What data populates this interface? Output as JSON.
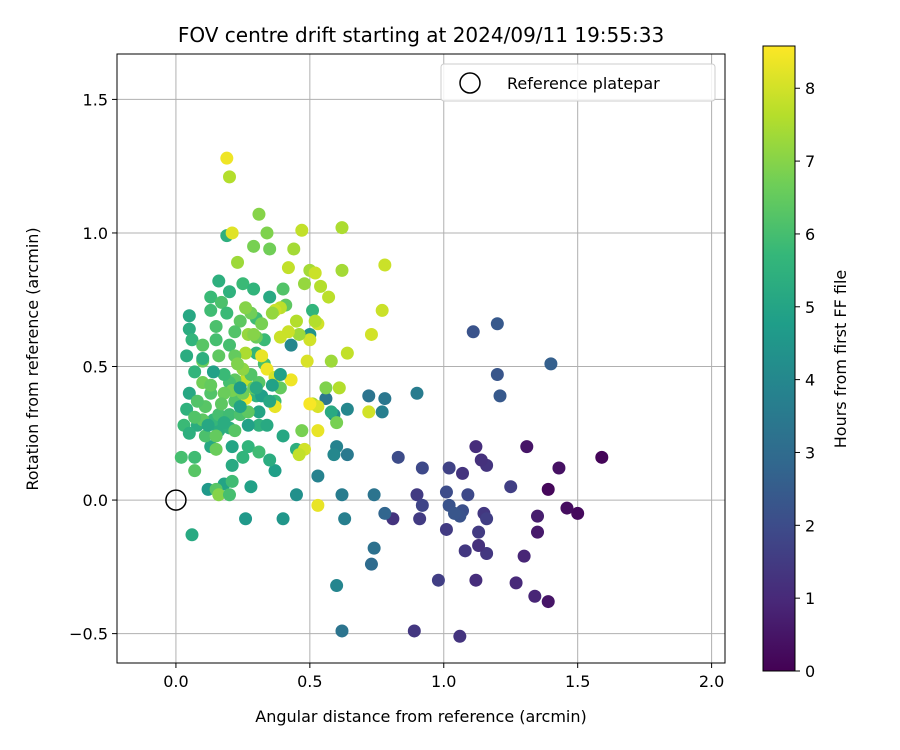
{
  "chart_data": {
    "type": "scatter",
    "title": "FOV centre drift starting at 2024/09/11 19:55:33",
    "xlabel": "Angular distance from reference (arcmin)",
    "ylabel": "Rotation from reference (arcmin)",
    "xlim": [
      -0.22,
      2.05
    ],
    "ylim": [
      -0.61,
      1.67
    ],
    "xticks": [
      0.0,
      0.5,
      1.0,
      1.5,
      2.0
    ],
    "xtick_labels": [
      "0.0",
      "0.5",
      "1.0",
      "1.5",
      "2.0"
    ],
    "yticks": [
      -0.5,
      0.0,
      0.5,
      1.0,
      1.5
    ],
    "ytick_labels": [
      "−0.5",
      "0.0",
      "0.5",
      "1.0",
      "1.5"
    ],
    "grid": true,
    "legend": {
      "placement": "top-right",
      "entries": [
        "Reference platepar"
      ]
    },
    "reference_point": {
      "x": 0.0,
      "y": 0.0,
      "label": "Reference platepar"
    },
    "colorbar": {
      "label": "Hours from first FF file",
      "range": [
        0,
        8.58
      ],
      "ticks": [
        0,
        1,
        2,
        3,
        4,
        5,
        6,
        7,
        8
      ],
      "tick_labels": [
        "0",
        "1",
        "2",
        "3",
        "4",
        "5",
        "6",
        "7",
        "8"
      ],
      "colormap": "viridis"
    },
    "points": [
      [
        1.59,
        0.16,
        0.1
      ],
      [
        1.5,
        -0.05,
        0.2
      ],
      [
        1.46,
        -0.03,
        0.3
      ],
      [
        1.43,
        0.12,
        0.4
      ],
      [
        1.39,
        0.04,
        0.15
      ],
      [
        1.39,
        -0.38,
        0.5
      ],
      [
        1.35,
        -0.06,
        0.7
      ],
      [
        1.35,
        -0.12,
        0.6
      ],
      [
        1.34,
        -0.36,
        0.9
      ],
      [
        1.31,
        0.2,
        0.5
      ],
      [
        1.3,
        -0.21,
        0.9
      ],
      [
        1.27,
        -0.31,
        1.0
      ],
      [
        1.25,
        0.05,
        1.6
      ],
      [
        1.2,
        0.66,
        2.4
      ],
      [
        1.2,
        0.47,
        2.3
      ],
      [
        1.21,
        0.39,
        2.4
      ],
      [
        1.11,
        0.63,
        2.2
      ],
      [
        1.4,
        0.51,
        2.6
      ],
      [
        1.16,
        0.13,
        1.3
      ],
      [
        1.14,
        0.15,
        1.2
      ],
      [
        1.12,
        0.2,
        1.1
      ],
      [
        1.15,
        -0.05,
        1.4
      ],
      [
        1.13,
        -0.12,
        1.5
      ],
      [
        1.16,
        -0.2,
        1.4
      ],
      [
        1.13,
        -0.17,
        1.2
      ],
      [
        1.12,
        -0.3,
        1.1
      ],
      [
        1.16,
        -0.07,
        1.6
      ],
      [
        1.09,
        0.02,
        1.9
      ],
      [
        1.07,
        0.1,
        1.3
      ],
      [
        1.07,
        -0.04,
        2.1
      ],
      [
        1.06,
        -0.06,
        2.2
      ],
      [
        1.08,
        -0.19,
        1.4
      ],
      [
        1.06,
        -0.51,
        1.3
      ],
      [
        1.02,
        0.12,
        1.7
      ],
      [
        1.01,
        0.03,
        2.0
      ],
      [
        1.02,
        -0.02,
        2.2
      ],
      [
        1.01,
        -0.11,
        1.5
      ],
      [
        1.04,
        -0.05,
        2.3
      ],
      [
        0.98,
        -0.3,
        1.6
      ],
      [
        0.92,
        0.12,
        1.9
      ],
      [
        0.9,
        0.02,
        1.5
      ],
      [
        0.91,
        -0.07,
        1.5
      ],
      [
        0.92,
        -0.02,
        1.8
      ],
      [
        0.89,
        -0.49,
        1.4
      ],
      [
        0.83,
        0.16,
        2.0
      ],
      [
        0.81,
        -0.07,
        1.3
      ],
      [
        0.78,
        -0.05,
        2.8
      ],
      [
        0.74,
        0.02,
        3.3
      ],
      [
        0.73,
        -0.24,
        3.0
      ],
      [
        0.74,
        -0.18,
        3.2
      ],
      [
        0.9,
        0.4,
        3.6
      ],
      [
        0.72,
        0.39,
        3.3
      ],
      [
        0.78,
        0.38,
        3.4
      ],
      [
        0.77,
        0.33,
        3.7
      ],
      [
        0.64,
        0.17,
        3.5
      ],
      [
        0.6,
        0.2,
        3.8
      ],
      [
        0.59,
        0.17,
        4.0
      ],
      [
        0.62,
        0.02,
        3.6
      ],
      [
        0.63,
        -0.07,
        3.7
      ],
      [
        0.6,
        -0.32,
        3.9
      ],
      [
        0.62,
        -0.49,
        3.3
      ],
      [
        0.53,
        0.09,
        3.8
      ],
      [
        0.45,
        0.02,
        4.3
      ],
      [
        0.4,
        -0.07,
        4.5
      ],
      [
        0.26,
        -0.07,
        4.6
      ],
      [
        0.06,
        -0.13,
        5.2
      ],
      [
        0.12,
        0.04,
        4.6
      ],
      [
        0.18,
        0.06,
        5.0
      ],
      [
        0.28,
        0.05,
        4.9
      ],
      [
        0.4,
        0.24,
        5.1
      ],
      [
        0.37,
        0.11,
        4.8
      ],
      [
        0.35,
        0.15,
        5.3
      ],
      [
        0.45,
        0.19,
        5.4
      ],
      [
        0.59,
        0.32,
        4.1
      ],
      [
        0.56,
        0.38,
        3.4
      ],
      [
        0.64,
        0.34,
        4.0
      ],
      [
        0.58,
        0.33,
        5.2
      ],
      [
        0.43,
        0.58,
        4.0
      ],
      [
        0.5,
        0.62,
        4.4
      ],
      [
        0.51,
        0.71,
        5.6
      ],
      [
        0.35,
        0.76,
        5.2
      ],
      [
        0.25,
        0.81,
        5.8
      ],
      [
        0.2,
        0.78,
        5.5
      ],
      [
        0.19,
        0.99,
        5.4
      ],
      [
        0.29,
        0.79,
        5.6
      ],
      [
        0.16,
        0.82,
        5.4
      ],
      [
        0.13,
        0.76,
        5.8
      ],
      [
        0.05,
        0.69,
        5.1
      ],
      [
        0.05,
        0.64,
        5.3
      ],
      [
        0.06,
        0.6,
        5.6
      ],
      [
        0.04,
        0.54,
        5.3
      ],
      [
        0.07,
        0.48,
        5.6
      ],
      [
        0.05,
        0.4,
        5.1
      ],
      [
        0.04,
        0.34,
        5.5
      ],
      [
        0.08,
        0.28,
        5.3
      ],
      [
        0.03,
        0.28,
        5.8
      ],
      [
        0.05,
        0.25,
        5.4
      ],
      [
        0.02,
        0.16,
        6.0
      ],
      [
        0.07,
        0.11,
        6.3
      ],
      [
        0.07,
        0.16,
        5.9
      ],
      [
        0.13,
        0.2,
        5.1
      ],
      [
        0.16,
        0.26,
        5.3
      ],
      [
        0.14,
        0.3,
        5.7
      ],
      [
        0.2,
        0.27,
        5.4
      ],
      [
        0.25,
        0.16,
        5.6
      ],
      [
        0.21,
        0.13,
        5.2
      ],
      [
        0.27,
        0.2,
        5.6
      ],
      [
        0.31,
        0.18,
        5.9
      ],
      [
        0.31,
        0.28,
        5.5
      ],
      [
        0.31,
        0.33,
        5.0
      ],
      [
        0.3,
        0.39,
        5.5
      ],
      [
        0.3,
        0.55,
        5.6
      ],
      [
        0.33,
        0.6,
        5.8
      ],
      [
        0.3,
        0.68,
        5.9
      ],
      [
        0.33,
        0.51,
        6.0
      ],
      [
        0.37,
        0.37,
        5.8
      ],
      [
        0.41,
        0.73,
        6.4
      ],
      [
        0.4,
        0.79,
        6.2
      ],
      [
        0.35,
        0.94,
        6.7
      ],
      [
        0.31,
        1.07,
        7.0
      ],
      [
        0.29,
        0.95,
        6.8
      ],
      [
        0.34,
        1.0,
        6.9
      ],
      [
        0.23,
        0.89,
        7.3
      ],
      [
        0.2,
        1.21,
        7.6
      ],
      [
        0.19,
        1.28,
        8.4
      ],
      [
        0.21,
        1.0,
        8.2
      ],
      [
        0.42,
        0.87,
        7.8
      ],
      [
        0.44,
        0.94,
        7.4
      ],
      [
        0.47,
        1.01,
        7.8
      ],
      [
        0.5,
        0.86,
        7.4
      ],
      [
        0.52,
        0.85,
        7.9
      ],
      [
        0.48,
        0.81,
        7.2
      ],
      [
        0.54,
        0.8,
        7.6
      ],
      [
        0.57,
        0.76,
        7.7
      ],
      [
        0.62,
        1.02,
        7.5
      ],
      [
        0.62,
        0.86,
        7.4
      ],
      [
        0.78,
        0.88,
        7.9
      ],
      [
        0.77,
        0.71,
        7.9
      ],
      [
        0.73,
        0.62,
        8.0
      ],
      [
        0.64,
        0.55,
        7.8
      ],
      [
        0.58,
        0.52,
        7.3
      ],
      [
        0.56,
        0.42,
        6.9
      ],
      [
        0.61,
        0.42,
        7.6
      ],
      [
        0.6,
        0.29,
        6.8
      ],
      [
        0.51,
        0.36,
        7.5
      ],
      [
        0.53,
        0.35,
        8.1
      ],
      [
        0.5,
        0.36,
        8.5
      ],
      [
        0.53,
        0.26,
        8.3
      ],
      [
        0.48,
        0.19,
        8.0
      ],
      [
        0.46,
        0.17,
        7.8
      ],
      [
        0.47,
        0.26,
        6.8
      ],
      [
        0.53,
        -0.02,
        8.3
      ],
      [
        0.72,
        0.33,
        8.0
      ],
      [
        0.5,
        0.6,
        8.0
      ],
      [
        0.49,
        0.52,
        8.1
      ],
      [
        0.53,
        0.66,
        8.0
      ],
      [
        0.52,
        0.67,
        7.6
      ],
      [
        0.46,
        0.62,
        7.3
      ],
      [
        0.45,
        0.67,
        7.6
      ],
      [
        0.42,
        0.63,
        7.9
      ],
      [
        0.39,
        0.72,
        7.7
      ],
      [
        0.37,
        0.71,
        7.9
      ],
      [
        0.39,
        0.61,
        7.9
      ],
      [
        0.32,
        0.54,
        8.3
      ],
      [
        0.34,
        0.49,
        8.4
      ],
      [
        0.37,
        0.46,
        8.0
      ],
      [
        0.43,
        0.45,
        8.4
      ],
      [
        0.39,
        0.42,
        6.5
      ],
      [
        0.37,
        0.35,
        8.3
      ],
      [
        0.26,
        0.38,
        8.4
      ],
      [
        0.26,
        0.45,
        7.8
      ],
      [
        0.26,
        0.55,
        7.5
      ],
      [
        0.27,
        0.62,
        7.2
      ],
      [
        0.28,
        0.7,
        6.7
      ],
      [
        0.26,
        0.72,
        7.0
      ],
      [
        0.24,
        0.67,
        6.4
      ],
      [
        0.22,
        0.63,
        6.2
      ],
      [
        0.2,
        0.58,
        6.0
      ],
      [
        0.22,
        0.54,
        6.5
      ],
      [
        0.22,
        0.45,
        6.4
      ],
      [
        0.2,
        0.44,
        6.0
      ],
      [
        0.18,
        0.47,
        5.8
      ],
      [
        0.16,
        0.54,
        6.4
      ],
      [
        0.15,
        0.6,
        6.0
      ],
      [
        0.15,
        0.65,
        6.1
      ],
      [
        0.13,
        0.71,
        5.9
      ],
      [
        0.17,
        0.74,
        6.1
      ],
      [
        0.19,
        0.7,
        5.8
      ],
      [
        0.1,
        0.58,
        6.3
      ],
      [
        0.1,
        0.52,
        6.6
      ],
      [
        0.1,
        0.44,
        6.7
      ],
      [
        0.13,
        0.4,
        6.2
      ],
      [
        0.11,
        0.35,
        6.3
      ],
      [
        0.1,
        0.3,
        6.4
      ],
      [
        0.11,
        0.24,
        6.1
      ],
      [
        0.15,
        0.24,
        6.5
      ],
      [
        0.16,
        0.32,
        6.0
      ],
      [
        0.2,
        0.32,
        5.9
      ],
      [
        0.22,
        0.37,
        6.2
      ],
      [
        0.22,
        0.26,
        6.3
      ],
      [
        0.24,
        0.32,
        6.1
      ],
      [
        0.25,
        0.4,
        6.7
      ],
      [
        0.27,
        0.33,
        6.4
      ],
      [
        0.29,
        0.42,
        6.6
      ],
      [
        0.31,
        0.44,
        6.3
      ],
      [
        0.28,
        0.47,
        6.2
      ],
      [
        0.3,
        0.61,
        6.6
      ],
      [
        0.29,
        0.62,
        7.0
      ],
      [
        0.32,
        0.66,
        6.8
      ],
      [
        0.36,
        0.7,
        7.2
      ],
      [
        0.25,
        0.49,
        7.1
      ],
      [
        0.23,
        0.51,
        6.9
      ],
      [
        0.21,
        0.41,
        6.8
      ],
      [
        0.18,
        0.4,
        6.6
      ],
      [
        0.17,
        0.36,
        6.4
      ],
      [
        0.13,
        0.43,
        6.5
      ],
      [
        0.08,
        0.37,
        6.2
      ],
      [
        0.07,
        0.31,
        6.2
      ],
      [
        0.15,
        0.19,
        6.6
      ],
      [
        0.15,
        0.04,
        6.3
      ],
      [
        0.16,
        0.02,
        7.0
      ],
      [
        0.2,
        0.02,
        6.0
      ],
      [
        0.21,
        0.07,
        5.9
      ],
      [
        0.32,
        0.39,
        4.8
      ],
      [
        0.3,
        0.42,
        5.2
      ],
      [
        0.21,
        0.2,
        5.0
      ],
      [
        0.18,
        0.29,
        5.3
      ],
      [
        0.12,
        0.28,
        5.1
      ],
      [
        0.14,
        0.48,
        4.9
      ],
      [
        0.1,
        0.53,
        5.4
      ],
      [
        0.39,
        0.47,
        4.9
      ],
      [
        0.24,
        0.42,
        4.7
      ],
      [
        0.24,
        0.35,
        5.0
      ],
      [
        0.27,
        0.28,
        4.9
      ],
      [
        0.34,
        0.28,
        5.2
      ],
      [
        0.35,
        0.37,
        5.1
      ],
      [
        0.36,
        0.43,
        4.9
      ]
    ]
  }
}
